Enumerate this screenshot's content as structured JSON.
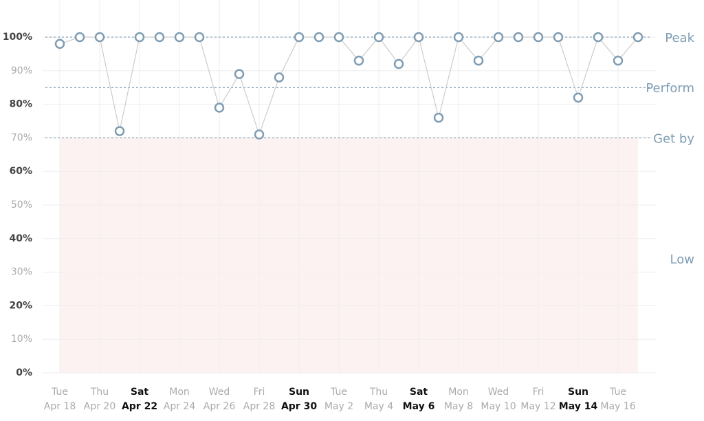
{
  "chart_data": {
    "type": "line",
    "categories": [
      {
        "weekday": "Tue",
        "date": "Apr 18",
        "emphasis": false
      },
      null,
      {
        "weekday": "Thu",
        "date": "Apr 20",
        "emphasis": false
      },
      null,
      {
        "weekday": "Sat",
        "date": "Apr 22",
        "emphasis": true
      },
      null,
      {
        "weekday": "Mon",
        "date": "Apr 24",
        "emphasis": false
      },
      null,
      {
        "weekday": "Wed",
        "date": "Apr 26",
        "emphasis": false
      },
      null,
      {
        "weekday": "Fri",
        "date": "Apr 28",
        "emphasis": false
      },
      null,
      {
        "weekday": "Sun",
        "date": "Apr 30",
        "emphasis": true
      },
      null,
      {
        "weekday": "Tue",
        "date": "May 2",
        "emphasis": false
      },
      null,
      {
        "weekday": "Thu",
        "date": "May 4",
        "emphasis": false
      },
      null,
      {
        "weekday": "Sat",
        "date": "May 6",
        "emphasis": true
      },
      null,
      {
        "weekday": "Mon",
        "date": "May 8",
        "emphasis": false
      },
      null,
      {
        "weekday": "Wed",
        "date": "May 10",
        "emphasis": false
      },
      null,
      {
        "weekday": "Fri",
        "date": "May 12",
        "emphasis": false
      },
      null,
      {
        "weekday": "Sun",
        "date": "May 14",
        "emphasis": true
      },
      null,
      {
        "weekday": "Tue",
        "date": "May 16",
        "emphasis": false
      },
      null
    ],
    "series": [
      {
        "color": "#7f9db3",
        "values": [
          98,
          100,
          100,
          72,
          100,
          100,
          100,
          100,
          79,
          89,
          71,
          88,
          100,
          100,
          100,
          93,
          100,
          92,
          100,
          76,
          100,
          93,
          100,
          100,
          100,
          100,
          82,
          100,
          93,
          100
        ]
      }
    ],
    "ylim": [
      0,
      100
    ],
    "yticks": [
      {
        "value": 0,
        "label": "0%"
      },
      {
        "value": 10,
        "label": "10%"
      },
      {
        "value": 20,
        "label": "20%"
      },
      {
        "value": 30,
        "label": "30%"
      },
      {
        "value": 40,
        "label": "40%"
      },
      {
        "value": 50,
        "label": "50%"
      },
      {
        "value": 60,
        "label": "60%"
      },
      {
        "value": 70,
        "label": "70%"
      },
      {
        "value": 80,
        "label": "80%"
      },
      {
        "value": 90,
        "label": "90%"
      },
      {
        "value": 100,
        "label": "100%"
      }
    ],
    "grid": true,
    "zones": [
      {
        "label": "Peak",
        "line": 100
      },
      {
        "label": "Perform",
        "line": 85
      },
      {
        "label": "Get by",
        "line": 70
      },
      {
        "label": "Low",
        "range": [
          0,
          70
        ],
        "color": "#fdf2f2"
      }
    ]
  }
}
